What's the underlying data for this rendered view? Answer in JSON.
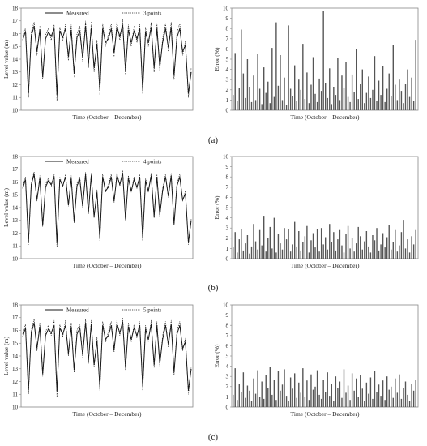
{
  "panels": [
    {
      "label": "(a)"
    },
    {
      "label": "(b)"
    },
    {
      "label": "(c)"
    }
  ],
  "colors": {
    "line": "#1a1a1a",
    "bar": "#555555",
    "frame": "#888888"
  },
  "chart_data": [
    {
      "type": "line",
      "panel": "a",
      "side": "level",
      "xlabel": "Time (October – December)",
      "ylabel": "Level value (m)",
      "ylim": [
        10,
        18
      ],
      "yticks": [
        10,
        11,
        12,
        13,
        14,
        15,
        16,
        17,
        18
      ],
      "grid": false,
      "legend": "top",
      "series": [
        {
          "name": "Measured",
          "style": "solid",
          "values": [
            15.5,
            16.2,
            11.3,
            15.8,
            16.6,
            14.6,
            16.3,
            12.6,
            15.6,
            16.1,
            15.8,
            16.4,
            11.2,
            16.2,
            15.7,
            16.4,
            14.2,
            16.3,
            12.9,
            15.7,
            16.2,
            14.1,
            16.6,
            13.6,
            16.5,
            13.3,
            15.2,
            11.6,
            16.4,
            15.3,
            15.6,
            16.4,
            14.5,
            16.5,
            15.8,
            16.7,
            13.1,
            16.3,
            15.3,
            16.2,
            15.6,
            16.4,
            11.6,
            16.1,
            15.3,
            16.5,
            13.3,
            16.4,
            13.4,
            15.3,
            16.4,
            14.9,
            16.5,
            12.7,
            15.7,
            16.4,
            14.6,
            15.1,
            11.3,
            13.0
          ]
        },
        {
          "name": "3 points",
          "style": "dotted",
          "values": [
            15.8,
            16.5,
            11.0,
            16.1,
            16.9,
            14.3,
            16.6,
            12.4,
            15.9,
            16.4,
            15.5,
            16.7,
            10.7,
            16.5,
            15.4,
            16.8,
            13.9,
            16.7,
            12.6,
            16.0,
            16.6,
            13.8,
            17.0,
            13.3,
            16.9,
            13.0,
            15.5,
            11.2,
            16.8,
            15.0,
            15.9,
            16.8,
            14.2,
            16.9,
            15.5,
            17.1,
            12.8,
            16.7,
            15.0,
            16.6,
            15.3,
            16.8,
            11.3,
            16.5,
            15.0,
            16.9,
            13.0,
            16.8,
            13.1,
            15.6,
            16.8,
            14.6,
            16.9,
            12.4,
            16.1,
            16.8,
            14.3,
            15.4,
            11.0,
            13.3
          ]
        }
      ]
    },
    {
      "type": "bar",
      "panel": "a",
      "side": "error",
      "xlabel": "Time (October – December)",
      "ylabel": "Error (%)",
      "ylim": [
        0,
        10
      ],
      "yticks": [
        0,
        1,
        2,
        3,
        4,
        5,
        6,
        7,
        8,
        9,
        10
      ],
      "grid": false,
      "values": [
        1.5,
        5.6,
        0.9,
        2.2,
        7.9,
        3.6,
        1.2,
        5.0,
        2.3,
        0.8,
        3.4,
        1.0,
        5.5,
        2.1,
        0.6,
        4.2,
        1.7,
        2.8,
        0.7,
        6.1,
        1.3,
        8.6,
        2.4,
        5.4,
        1.0,
        3.2,
        0.5,
        8.3,
        2.1,
        1.4,
        4.4,
        0.9,
        3.0,
        2.0,
        6.5,
        1.1,
        3.7,
        0.7,
        2.5,
        5.2,
        1.6,
        0.8,
        3.1,
        1.9,
        9.7,
        2.7,
        1.2,
        4.1,
        0.6,
        2.3,
        1.5,
        5.1,
        1.0,
        3.4,
        2.2,
        4.7,
        1.3,
        0.8,
        3.5,
        1.8,
        6.0,
        1.1,
        2.6,
        4.0,
        0.7,
        1.7,
        3.3,
        1.2,
        2.0,
        5.3,
        0.9,
        2.9,
        1.5,
        4.3,
        0.8,
        2.1,
        3.6,
        1.4,
        6.4,
        2.5,
        1.0,
        3.0,
        1.9,
        0.7,
        2.6,
        4.0,
        1.3,
        3.2,
        0.9,
        6.9
      ]
    },
    {
      "type": "line",
      "panel": "b",
      "side": "level",
      "xlabel": "Time (October – December)",
      "ylabel": "Level value (m)",
      "ylim": [
        10,
        18
      ],
      "yticks": [
        10,
        11,
        12,
        13,
        14,
        15,
        16,
        17,
        18
      ],
      "grid": false,
      "legend": "top",
      "series": [
        {
          "name": "Measured",
          "style": "solid",
          "values": [
            15.5,
            16.2,
            11.3,
            15.8,
            16.6,
            14.6,
            16.3,
            12.6,
            15.6,
            16.1,
            15.8,
            16.4,
            11.2,
            16.2,
            15.7,
            16.4,
            14.2,
            16.3,
            12.9,
            15.7,
            16.2,
            14.1,
            16.6,
            13.6,
            16.5,
            13.3,
            15.2,
            11.6,
            16.4,
            15.3,
            15.6,
            16.4,
            14.5,
            16.5,
            15.8,
            16.7,
            13.1,
            16.3,
            15.3,
            16.2,
            15.6,
            16.4,
            11.6,
            16.1,
            15.3,
            16.5,
            13.3,
            16.4,
            13.4,
            15.3,
            16.4,
            14.9,
            16.5,
            12.7,
            15.7,
            16.4,
            14.6,
            15.1,
            11.3,
            13.0
          ]
        },
        {
          "name": "4 points",
          "style": "dotted",
          "values": [
            15.6,
            16.4,
            11.1,
            15.9,
            16.8,
            14.5,
            16.5,
            12.5,
            15.8,
            16.3,
            15.7,
            16.6,
            10.9,
            16.4,
            15.6,
            16.6,
            14.1,
            16.5,
            12.8,
            15.9,
            16.4,
            14.0,
            16.8,
            13.5,
            16.7,
            13.2,
            15.4,
            11.4,
            16.6,
            15.2,
            15.8,
            16.6,
            14.4,
            16.7,
            15.7,
            16.9,
            13.0,
            16.5,
            15.2,
            16.4,
            15.5,
            16.6,
            11.4,
            16.3,
            15.2,
            16.7,
            13.2,
            16.6,
            13.3,
            15.5,
            16.6,
            14.8,
            16.7,
            12.6,
            15.9,
            16.6,
            14.5,
            15.3,
            11.1,
            13.1
          ]
        }
      ]
    },
    {
      "type": "bar",
      "panel": "b",
      "side": "error",
      "xlabel": "Time (October – December)",
      "ylabel": "Error (%)",
      "ylim": [
        0,
        10
      ],
      "yticks": [
        0,
        1,
        2,
        3,
        4,
        5,
        6,
        7,
        8,
        9,
        10
      ],
      "grid": false,
      "values": [
        1.1,
        2.6,
        0.6,
        1.9,
        2.9,
        0.8,
        1.5,
        2.3,
        0.5,
        1.2,
        3.4,
        1.7,
        0.9,
        2.8,
        1.3,
        4.2,
        0.7,
        2.0,
        3.1,
        1.0,
        4.0,
        0.6,
        2.4,
        1.5,
        0.9,
        3.0,
        1.9,
        2.9,
        0.7,
        1.4,
        3.6,
        1.2,
        2.7,
        0.8,
        1.6,
        2.2,
        3.2,
        0.6,
        1.8,
        2.5,
        1.1,
        2.9,
        0.7,
        3.0,
        1.4,
        2.1,
        0.9,
        3.4,
        1.6,
        2.6,
        0.8,
        1.9,
        2.8,
        1.3,
        0.6,
        2.4,
        3.2,
        1.0,
        2.0,
        0.7,
        1.5,
        3.1,
        2.2,
        0.9,
        1.7,
        2.7,
        1.2,
        0.6,
        2.3,
        1.8,
        3.0,
        0.8,
        1.4,
        2.5,
        1.1,
        2.1,
        3.3,
        0.9,
        1.6,
        2.8,
        0.7,
        1.3,
        2.6,
        3.8,
        1.0,
        1.9,
        0.6,
        2.2,
        1.4,
        2.8
      ]
    },
    {
      "type": "line",
      "panel": "c",
      "side": "level",
      "xlabel": "Time (October – December)",
      "ylabel": "Level value (m)",
      "ylim": [
        10,
        18
      ],
      "yticks": [
        10,
        11,
        12,
        13,
        14,
        15,
        16,
        17,
        18
      ],
      "grid": false,
      "legend": "top",
      "series": [
        {
          "name": "Measured",
          "style": "solid",
          "values": [
            15.5,
            16.2,
            11.3,
            15.8,
            16.6,
            14.6,
            16.3,
            12.6,
            15.6,
            16.1,
            15.8,
            16.4,
            11.2,
            16.2,
            15.7,
            16.4,
            14.2,
            16.3,
            12.9,
            15.7,
            16.2,
            14.1,
            16.6,
            13.6,
            16.5,
            13.3,
            15.2,
            11.6,
            16.4,
            15.3,
            15.6,
            16.4,
            14.5,
            16.5,
            15.8,
            16.7,
            13.1,
            16.3,
            15.3,
            16.2,
            15.6,
            16.4,
            11.6,
            16.1,
            15.3,
            16.5,
            13.3,
            16.4,
            13.4,
            15.3,
            16.4,
            14.9,
            16.5,
            12.7,
            15.7,
            16.4,
            14.6,
            15.1,
            11.3,
            13.0
          ]
        },
        {
          "name": "5 points",
          "style": "dotted",
          "values": [
            15.7,
            16.5,
            11.0,
            16.0,
            16.9,
            14.4,
            16.6,
            12.4,
            15.9,
            16.4,
            15.6,
            16.8,
            10.8,
            16.5,
            15.5,
            16.8,
            14.0,
            16.6,
            12.7,
            16.0,
            16.5,
            13.9,
            16.9,
            13.4,
            16.8,
            13.1,
            15.5,
            11.3,
            16.7,
            15.1,
            15.9,
            16.7,
            14.3,
            16.8,
            15.6,
            17.0,
            12.9,
            16.6,
            15.1,
            16.5,
            15.4,
            16.7,
            11.3,
            16.4,
            15.1,
            16.8,
            13.1,
            16.7,
            13.2,
            15.6,
            16.7,
            14.7,
            16.8,
            12.5,
            16.0,
            16.7,
            14.4,
            15.4,
            11.0,
            13.2
          ]
        }
      ]
    },
    {
      "type": "bar",
      "panel": "c",
      "side": "error",
      "xlabel": "Time (October – December)",
      "ylabel": "Error (%)",
      "ylim": [
        0,
        10
      ],
      "yticks": [
        0,
        1,
        2,
        3,
        4,
        5,
        6,
        7,
        8,
        9,
        10
      ],
      "grid": false,
      "values": [
        1.2,
        3.8,
        0.7,
        2.3,
        1.5,
        3.4,
        0.9,
        2.1,
        1.6,
        0.6,
        2.8,
        1.3,
        3.6,
        1.0,
        2.5,
        0.8,
        3.1,
        1.9,
        3.9,
        1.2,
        2.7,
        0.7,
        3.5,
        1.6,
        2.2,
        3.7,
        1.1,
        0.6,
        2.9,
        1.8,
        3.3,
        0.9,
        2.4,
        1.4,
        3.8,
        1.0,
        2.6,
        0.7,
        3.2,
        1.7,
        2.0,
        3.6,
        1.2,
        0.8,
        2.7,
        1.5,
        3.4,
        1.1,
        2.3,
        0.6,
        3.0,
        1.9,
        2.5,
        0.9,
        3.7,
        1.4,
        2.1,
        0.7,
        3.3,
        1.6,
        2.8,
        1.0,
        3.1,
        1.8,
        0.6,
        2.4,
        1.3,
        2.9,
        0.8,
        3.5,
        1.5,
        2.2,
        1.1,
        2.6,
        0.7,
        3.0,
        1.7,
        2.0,
        0.9,
        2.8,
        1.4,
        3.2,
        0.8,
        1.9,
        2.5,
        1.2,
        0.6,
        2.3,
        1.6,
        2.7
      ]
    }
  ]
}
